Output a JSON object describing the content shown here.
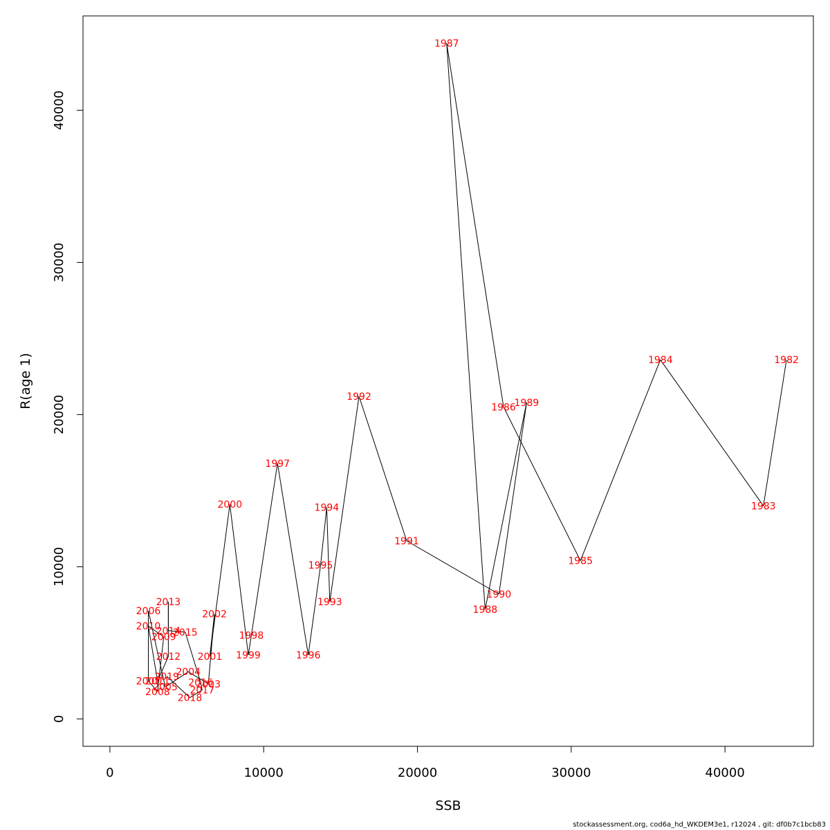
{
  "chart_data": {
    "type": "scatter",
    "connected": true,
    "xlabel": "SSB",
    "ylabel": "R(age 1)",
    "xlim": [
      -1750,
      45750
    ],
    "ylim": [
      -1800,
      46200
    ],
    "xticks": [
      0,
      10000,
      20000,
      30000,
      40000
    ],
    "yticks": [
      0,
      10000,
      20000,
      30000,
      40000
    ],
    "grid": false,
    "line_color": "#000000",
    "label_color": "#ff0000",
    "points": [
      {
        "year": "1982",
        "x": 44000,
        "y": 23600
      },
      {
        "year": "1983",
        "x": 42500,
        "y": 14000
      },
      {
        "year": "1984",
        "x": 35800,
        "y": 23600
      },
      {
        "year": "1985",
        "x": 30600,
        "y": 10400
      },
      {
        "year": "1986",
        "x": 25600,
        "y": 20500
      },
      {
        "year": "1987",
        "x": 21900,
        "y": 44400
      },
      {
        "year": "1988",
        "x": 24400,
        "y": 7200
      },
      {
        "year": "1989",
        "x": 27100,
        "y": 20800
      },
      {
        "year": "1990",
        "x": 25300,
        "y": 8200
      },
      {
        "year": "1991",
        "x": 19300,
        "y": 11700
      },
      {
        "year": "1992",
        "x": 16200,
        "y": 21200
      },
      {
        "year": "1993",
        "x": 14300,
        "y": 7700
      },
      {
        "year": "1994",
        "x": 14100,
        "y": 13900
      },
      {
        "year": "1995",
        "x": 13700,
        "y": 10100
      },
      {
        "year": "1996",
        "x": 12900,
        "y": 4200
      },
      {
        "year": "1997",
        "x": 10900,
        "y": 16800
      },
      {
        "year": "1998",
        "x": 9200,
        "y": 5500
      },
      {
        "year": "1999",
        "x": 9000,
        "y": 4200
      },
      {
        "year": "2000",
        "x": 7800,
        "y": 14100
      },
      {
        "year": "2001",
        "x": 6500,
        "y": 4100
      },
      {
        "year": "2002",
        "x": 6800,
        "y": 6900
      },
      {
        "year": "2003",
        "x": 6400,
        "y": 2300
      },
      {
        "year": "2004",
        "x": 5100,
        "y": 3100
      },
      {
        "year": "2005",
        "x": 3600,
        "y": 2100
      },
      {
        "year": "2006",
        "x": 2500,
        "y": 7100
      },
      {
        "year": "2007",
        "x": 2500,
        "y": 2500
      },
      {
        "year": "2008",
        "x": 3100,
        "y": 1800
      },
      {
        "year": "2009",
        "x": 3500,
        "y": 5400
      },
      {
        "year": "2010",
        "x": 2500,
        "y": 6100
      },
      {
        "year": "2011",
        "x": 3100,
        "y": 2500
      },
      {
        "year": "2012",
        "x": 3800,
        "y": 4100
      },
      {
        "year": "2013",
        "x": 3800,
        "y": 7700
      },
      {
        "year": "2014",
        "x": 3800,
        "y": 5800
      },
      {
        "year": "2015",
        "x": 4900,
        "y": 5700
      },
      {
        "year": "2016",
        "x": 5900,
        "y": 2400
      },
      {
        "year": "2017",
        "x": 6000,
        "y": 1900
      },
      {
        "year": "2018",
        "x": 5200,
        "y": 1400
      },
      {
        "year": "2019",
        "x": 3700,
        "y": 2800
      }
    ]
  },
  "footer": "stockassessment.org, cod6a_hd_WKDEM3e1, r12024 , git: df0b7c1bcb83"
}
